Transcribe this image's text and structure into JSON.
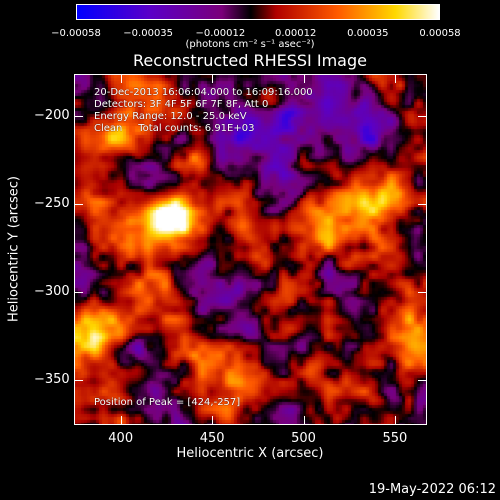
{
  "chart_data": {
    "type": "heatmap",
    "title": "Reconstructed RHESSI Image",
    "xlabel": "Heliocentric X (arcsec)",
    "ylabel": "Heliocentric Y (arcsec)",
    "xlim": [
      375,
      567
    ],
    "ylim": [
      -375,
      -177
    ],
    "xticks": [
      "400",
      "450",
      "500",
      "550"
    ],
    "yticks": [
      "-200",
      "-250",
      "-300",
      "-350"
    ],
    "colorbar": {
      "ticks": [
        "-0.00058",
        "-0.00035",
        "-0.00012",
        "0.00012",
        "0.00035",
        "0.00058"
      ],
      "unit": "(photons cm⁻² s⁻¹ asec⁻²)",
      "range": [
        -0.00058,
        0.00058
      ],
      "colors": [
        "#0000ff",
        "#5a00c8",
        "#8c0096",
        "#000000",
        "#c80000",
        "#ff7800",
        "#ffff00",
        "#ffffff"
      ]
    },
    "annotations": {
      "time_range": "20-Dec-2013 16:06:04.000 to 16:09:16.000",
      "detectors": "Detectors: 3F 4F 5F 6F 7F 8F, Att 0",
      "energy": "Energy Range: 12.0 - 25.0 keV",
      "clean": "Clean     Total counts: 6.91E+03",
      "peak": "Position of Peak = [424,-257]"
    },
    "peak_position": [
      424,
      -257
    ],
    "bright_sources": [
      {
        "x": 424,
        "y": -257,
        "intensity": 1.0
      },
      {
        "x": 385,
        "y": -320,
        "intensity": 0.9
      },
      {
        "x": 510,
        "y": -265,
        "intensity": 0.7
      },
      {
        "x": 395,
        "y": -210,
        "intensity": 0.6
      },
      {
        "x": 555,
        "y": -330,
        "intensity": 0.6
      },
      {
        "x": 545,
        "y": -245,
        "intensity": 0.55
      },
      {
        "x": 470,
        "y": -345,
        "intensity": 0.5
      }
    ]
  },
  "footer": {
    "date": "19-May-2022 06:12"
  }
}
